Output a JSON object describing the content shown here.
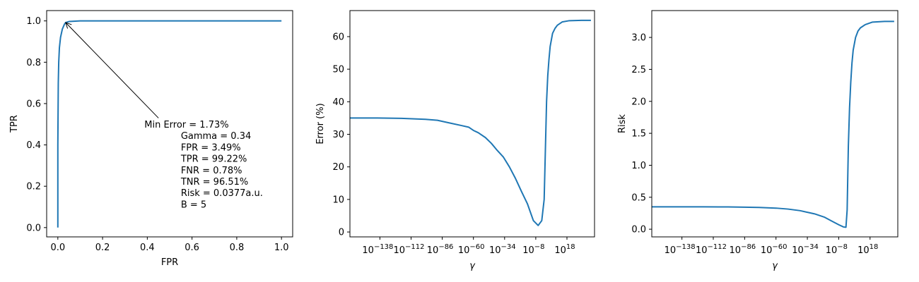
{
  "chart_data": [
    {
      "type": "line",
      "xlabel": "FPR",
      "ylabel": "TPR",
      "xlim": [
        -0.05,
        1.05
      ],
      "ylim": [
        -0.045,
        1.05
      ],
      "xticks": [
        0.0,
        0.2,
        0.4,
        0.6,
        0.8,
        1.0
      ],
      "xtick_labels": [
        "0.0",
        "0.2",
        "0.4",
        "0.6",
        "0.8",
        "1.0"
      ],
      "yticks": [
        0.0,
        0.2,
        0.4,
        0.6,
        0.8,
        1.0
      ],
      "ytick_labels": [
        "0.0",
        "0.2",
        "0.4",
        "0.6",
        "0.8",
        "1.0"
      ],
      "grid": false,
      "series": [
        {
          "color": "#1f77b4",
          "x": [
            0.0,
            0.0,
            0.002,
            0.004,
            0.007,
            0.012,
            0.02,
            0.03,
            0.035,
            0.05,
            0.1,
            0.2,
            0.4,
            0.6,
            0.8,
            1.0
          ],
          "y": [
            0.0,
            0.4,
            0.7,
            0.8,
            0.87,
            0.92,
            0.96,
            0.985,
            0.992,
            0.997,
            1.0,
            1.0,
            1.0,
            1.0,
            1.0,
            1.0
          ]
        }
      ],
      "annotation": {
        "point": [
          0.035,
          0.992
        ],
        "text_anchor": [
          0.45,
          0.53
        ],
        "lines": [
          "Min Error = 1.73%",
          "Gamma = 0.34",
          "FPR = 3.49%",
          "TPR = 99.22%",
          "FNR = 0.78%",
          "TNR = 96.51%",
          "Risk = 0.0377a.u.",
          "B = 5"
        ]
      }
    },
    {
      "type": "line",
      "xscale": "log",
      "xlabel": "γ",
      "ylabel": "Error (%)",
      "xlim_log10": [
        -163,
        41
      ],
      "ylim": [
        -1.5,
        68
      ],
      "xticks_log10": [
        -138,
        -112,
        -86,
        -60,
        -34,
        -8,
        18
      ],
      "xtick_base": "10",
      "xtick_exponents": [
        "−138",
        "−112",
        "−86",
        "−60",
        "−34",
        "−8",
        "18"
      ],
      "yticks": [
        0,
        10,
        20,
        30,
        40,
        50,
        60
      ],
      "ytick_labels": [
        "0",
        "10",
        "20",
        "30",
        "40",
        "50",
        "60"
      ],
      "grid": false,
      "series": [
        {
          "color": "#1f77b4",
          "x_log10": [
            -163,
            -140,
            -120,
            -100,
            -90,
            -80,
            -70,
            -64,
            -60,
            -56,
            -50,
            -45,
            -40,
            -35,
            -30,
            -25,
            -20,
            -15,
            -10,
            -6,
            -3,
            -1,
            0,
            1,
            2,
            3,
            4,
            6,
            8,
            10,
            14,
            20,
            30,
            38
          ],
          "y": [
            35.0,
            35.0,
            34.9,
            34.6,
            34.3,
            33.5,
            32.7,
            32.2,
            31.2,
            30.5,
            29.0,
            27.2,
            25.0,
            23.0,
            20.0,
            16.5,
            12.5,
            8.7,
            3.5,
            2.0,
            3.5,
            10.0,
            25.0,
            40.0,
            48.0,
            53.0,
            57.0,
            61.0,
            62.5,
            63.5,
            64.5,
            64.9,
            65.0,
            65.0
          ]
        }
      ]
    },
    {
      "type": "line",
      "xscale": "log",
      "xlabel": "γ",
      "ylabel": "Risk",
      "xlim_log10": [
        -163,
        41
      ],
      "ylim": [
        -0.12,
        3.42
      ],
      "xticks_log10": [
        -138,
        -112,
        -86,
        -60,
        -34,
        -8,
        18
      ],
      "xtick_base": "10",
      "xtick_exponents": [
        "−138",
        "−112",
        "−86",
        "−60",
        "−34",
        "−8",
        "18"
      ],
      "yticks": [
        0.0,
        0.5,
        1.0,
        1.5,
        2.0,
        2.5,
        3.0
      ],
      "ytick_labels": [
        "0.0",
        "0.5",
        "1.0",
        "1.5",
        "2.0",
        "2.5",
        "3.0"
      ],
      "grid": false,
      "series": [
        {
          "color": "#1f77b4",
          "x_log10": [
            -163,
            -140,
            -120,
            -100,
            -86,
            -74,
            -60,
            -50,
            -40,
            -34,
            -28,
            -20,
            -14,
            -8,
            -4,
            -2,
            -1,
            0,
            1,
            2,
            3,
            4,
            6,
            8,
            10,
            14,
            20,
            30,
            38
          ],
          "y": [
            0.35,
            0.35,
            0.35,
            0.348,
            0.345,
            0.34,
            0.33,
            0.315,
            0.29,
            0.265,
            0.24,
            0.19,
            0.13,
            0.07,
            0.035,
            0.03,
            0.3,
            1.3,
            1.9,
            2.3,
            2.6,
            2.8,
            3.0,
            3.1,
            3.15,
            3.2,
            3.24,
            3.25,
            3.25
          ]
        }
      ]
    }
  ]
}
